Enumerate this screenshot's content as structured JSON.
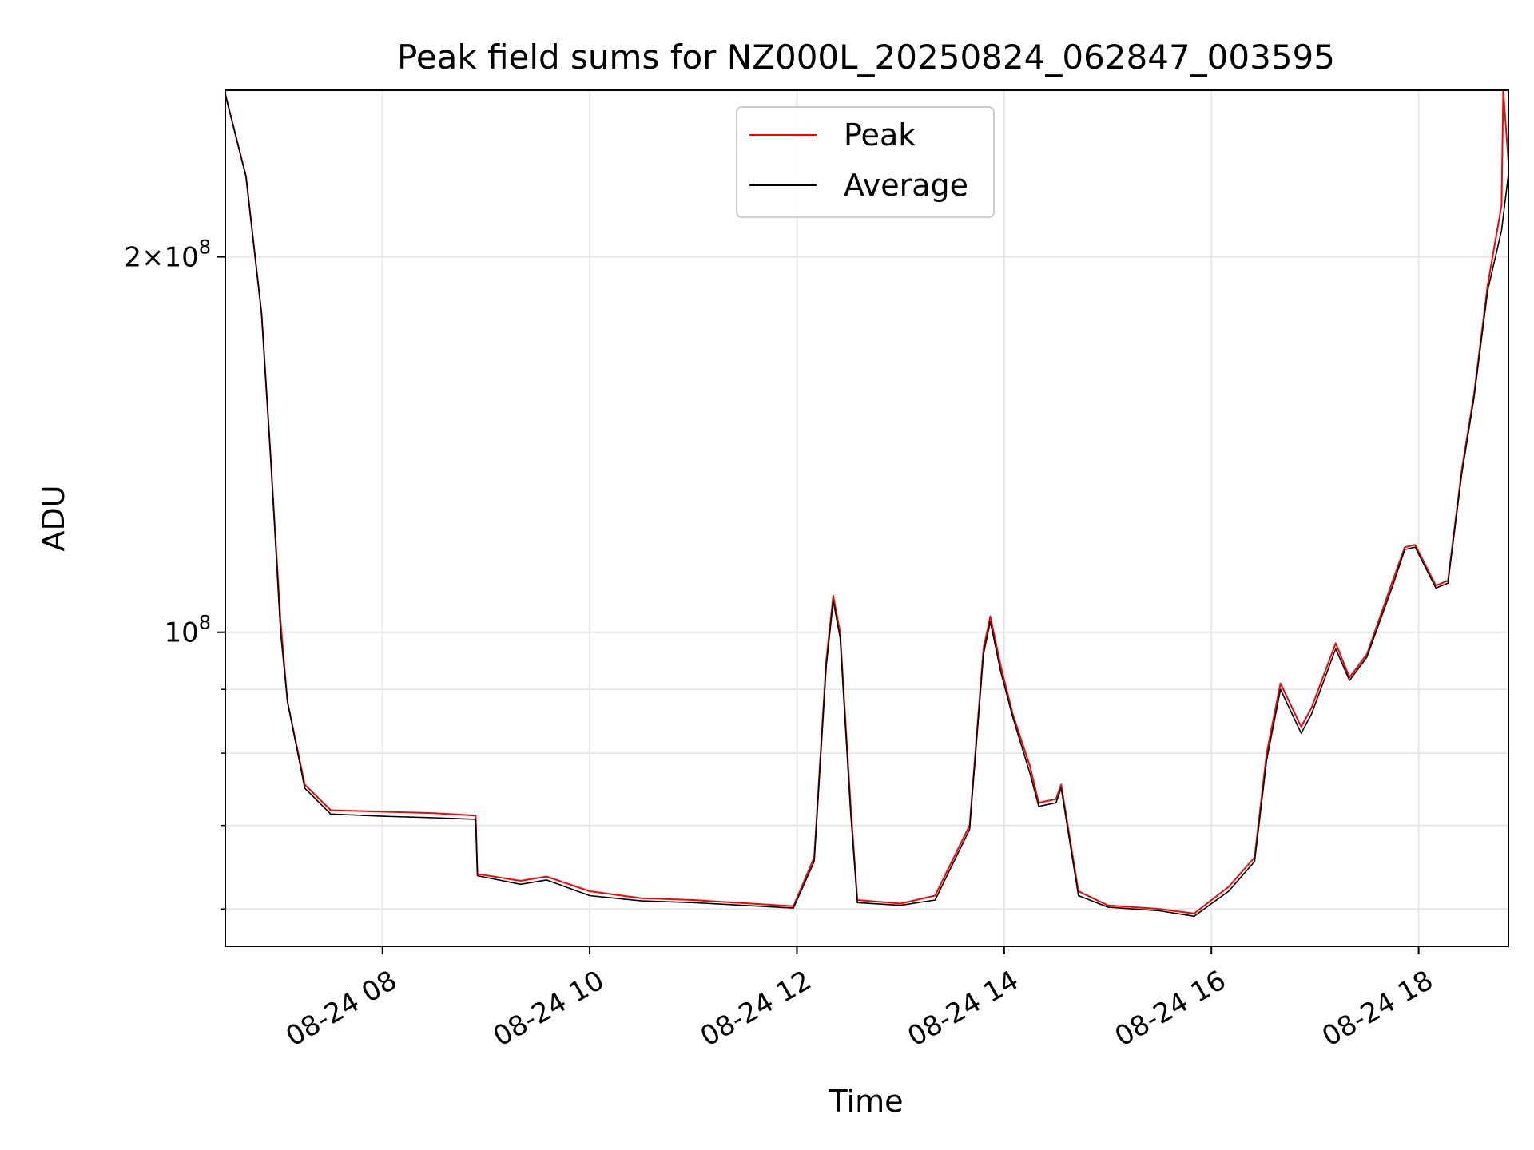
{
  "chart_data": {
    "type": "line",
    "title": "Peak field sums for NZ000L_20250824_062847_003595",
    "xlabel": "Time",
    "ylabel": "ADU",
    "yscale": "log",
    "grid": true,
    "legend_position": "top-center",
    "xlim": [
      "2025-08-24 06:29",
      "2025-08-24 18:52"
    ],
    "ylim": [
      56000000,
      272000000
    ],
    "x_ticks": [
      {
        "value": "2025-08-24 08:00",
        "label": "08-24 08"
      },
      {
        "value": "2025-08-24 10:00",
        "label": "08-24 10"
      },
      {
        "value": "2025-08-24 12:00",
        "label": "08-24 12"
      },
      {
        "value": "2025-08-24 14:00",
        "label": "08-24 14"
      },
      {
        "value": "2025-08-24 16:00",
        "label": "08-24 16"
      },
      {
        "value": "2025-08-24 18:00",
        "label": "08-24 18"
      }
    ],
    "y_major_ticks": [
      {
        "value": 100000000,
        "label": "10^8"
      },
      {
        "value": 200000000,
        "label": "2×10^8"
      }
    ],
    "y_minor_ticks": [
      60000000,
      70000000,
      80000000,
      90000000
    ],
    "series": [
      {
        "name": "Peak",
        "color": "#ff0000",
        "points": [
          [
            "2025-08-24 06:29",
            270000000
          ],
          [
            "2025-08-24 06:41",
            232000000
          ],
          [
            "2025-08-24 06:50",
            180000000
          ],
          [
            "2025-08-24 06:55",
            140000000
          ],
          [
            "2025-08-24 07:01",
            102000000
          ],
          [
            "2025-08-24 07:05",
            88000000
          ],
          [
            "2025-08-24 07:15",
            75500000
          ],
          [
            "2025-08-24 07:30",
            72000000
          ],
          [
            "2025-08-24 08:00",
            71800000
          ],
          [
            "2025-08-24 08:30",
            71600000
          ],
          [
            "2025-08-24 08:54",
            71300000
          ],
          [
            "2025-08-24 08:55",
            64000000
          ],
          [
            "2025-08-24 09:20",
            63200000
          ],
          [
            "2025-08-24 09:35",
            63700000
          ],
          [
            "2025-08-24 10:00",
            62000000
          ],
          [
            "2025-08-24 10:30",
            61200000
          ],
          [
            "2025-08-24 11:00",
            61000000
          ],
          [
            "2025-08-24 11:58",
            60300000
          ],
          [
            "2025-08-24 12:10",
            66000000
          ],
          [
            "2025-08-24 12:17",
            95000000
          ],
          [
            "2025-08-24 12:21",
            107000000
          ],
          [
            "2025-08-24 12:25",
            100000000
          ],
          [
            "2025-08-24 12:31",
            73000000
          ],
          [
            "2025-08-24 12:35",
            61000000
          ],
          [
            "2025-08-24 13:00",
            60600000
          ],
          [
            "2025-08-24 13:20",
            61500000
          ],
          [
            "2025-08-24 13:40",
            70000000
          ],
          [
            "2025-08-24 13:48",
            97000000
          ],
          [
            "2025-08-24 13:52",
            103000000
          ],
          [
            "2025-08-24 13:58",
            94000000
          ],
          [
            "2025-08-24 14:05",
            86000000
          ],
          [
            "2025-08-24 14:15",
            78000000
          ],
          [
            "2025-08-24 14:20",
            73000000
          ],
          [
            "2025-08-24 14:30",
            73500000
          ],
          [
            "2025-08-24 14:33",
            75500000
          ],
          [
            "2025-08-24 14:43",
            62000000
          ],
          [
            "2025-08-24 15:00",
            60400000
          ],
          [
            "2025-08-24 15:30",
            60000000
          ],
          [
            "2025-08-24 15:50",
            59500000
          ],
          [
            "2025-08-24 16:10",
            62500000
          ],
          [
            "2025-08-24 16:25",
            66000000
          ],
          [
            "2025-08-24 16:32",
            80000000
          ],
          [
            "2025-08-24 16:40",
            91000000
          ],
          [
            "2025-08-24 16:52",
            84000000
          ],
          [
            "2025-08-24 16:58",
            87000000
          ],
          [
            "2025-08-24 17:12",
            98000000
          ],
          [
            "2025-08-24 17:20",
            92000000
          ],
          [
            "2025-08-24 17:30",
            96000000
          ],
          [
            "2025-08-24 17:45",
            110000000
          ],
          [
            "2025-08-24 17:52",
            117000000
          ],
          [
            "2025-08-24 17:58",
            117500000
          ],
          [
            "2025-08-24 18:10",
            109000000
          ],
          [
            "2025-08-24 18:17",
            110000000
          ],
          [
            "2025-08-24 18:25",
            135000000
          ],
          [
            "2025-08-24 18:32",
            155000000
          ],
          [
            "2025-08-24 18:40",
            190000000
          ],
          [
            "2025-08-24 18:48",
            220000000
          ],
          [
            "2025-08-24 18:49",
            272000000
          ],
          [
            "2025-08-24 18:52",
            238000000
          ]
        ]
      },
      {
        "name": "Average",
        "color": "#000000",
        "points": [
          [
            "2025-08-24 06:29",
            270000000
          ],
          [
            "2025-08-24 06:41",
            232000000
          ],
          [
            "2025-08-24 06:50",
            180000000
          ],
          [
            "2025-08-24 06:55",
            140000000
          ],
          [
            "2025-08-24 07:01",
            100000000
          ],
          [
            "2025-08-24 07:05",
            88000000
          ],
          [
            "2025-08-24 07:15",
            75000000
          ],
          [
            "2025-08-24 07:30",
            71500000
          ],
          [
            "2025-08-24 08:00",
            71200000
          ],
          [
            "2025-08-24 08:30",
            71000000
          ],
          [
            "2025-08-24 08:54",
            70800000
          ],
          [
            "2025-08-24 08:55",
            63800000
          ],
          [
            "2025-08-24 09:20",
            62800000
          ],
          [
            "2025-08-24 09:35",
            63300000
          ],
          [
            "2025-08-24 10:00",
            61500000
          ],
          [
            "2025-08-24 10:30",
            60900000
          ],
          [
            "2025-08-24 11:00",
            60700000
          ],
          [
            "2025-08-24 11:58",
            60100000
          ],
          [
            "2025-08-24 12:10",
            65500000
          ],
          [
            "2025-08-24 12:17",
            94000000
          ],
          [
            "2025-08-24 12:21",
            106000000
          ],
          [
            "2025-08-24 12:25",
            99000000
          ],
          [
            "2025-08-24 12:31",
            72000000
          ],
          [
            "2025-08-24 12:35",
            60700000
          ],
          [
            "2025-08-24 13:00",
            60400000
          ],
          [
            "2025-08-24 13:20",
            61000000
          ],
          [
            "2025-08-24 13:40",
            69500000
          ],
          [
            "2025-08-24 13:48",
            96000000
          ],
          [
            "2025-08-24 13:52",
            102000000
          ],
          [
            "2025-08-24 13:58",
            93000000
          ],
          [
            "2025-08-24 14:05",
            85500000
          ],
          [
            "2025-08-24 14:15",
            77000000
          ],
          [
            "2025-08-24 14:20",
            72500000
          ],
          [
            "2025-08-24 14:30",
            73000000
          ],
          [
            "2025-08-24 14:33",
            75000000
          ],
          [
            "2025-08-24 14:43",
            61500000
          ],
          [
            "2025-08-24 15:00",
            60200000
          ],
          [
            "2025-08-24 15:30",
            59800000
          ],
          [
            "2025-08-24 15:50",
            59200000
          ],
          [
            "2025-08-24 16:10",
            62000000
          ],
          [
            "2025-08-24 16:25",
            65500000
          ],
          [
            "2025-08-24 16:32",
            79000000
          ],
          [
            "2025-08-24 16:40",
            90000000
          ],
          [
            "2025-08-24 16:52",
            83000000
          ],
          [
            "2025-08-24 16:58",
            86000000
          ],
          [
            "2025-08-24 17:12",
            97000000
          ],
          [
            "2025-08-24 17:20",
            91500000
          ],
          [
            "2025-08-24 17:30",
            95500000
          ],
          [
            "2025-08-24 17:45",
            109000000
          ],
          [
            "2025-08-24 17:52",
            116500000
          ],
          [
            "2025-08-24 17:58",
            117000000
          ],
          [
            "2025-08-24 18:10",
            108500000
          ],
          [
            "2025-08-24 18:17",
            109500000
          ],
          [
            "2025-08-24 18:25",
            134000000
          ],
          [
            "2025-08-24 18:32",
            154000000
          ],
          [
            "2025-08-24 18:40",
            188000000
          ],
          [
            "2025-08-24 18:48",
            210000000
          ],
          [
            "2025-08-24 18:52",
            233000000
          ]
        ]
      }
    ]
  }
}
